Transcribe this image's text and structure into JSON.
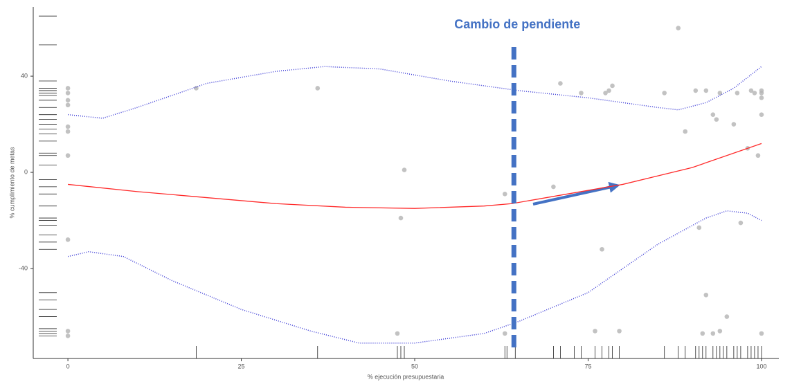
{
  "chart_data": {
    "type": "scatter",
    "x_label": "% ejecución presupuestaria",
    "y_label": "% cumplimiento de metas",
    "xlim": [
      -5,
      102.5
    ],
    "ylim": [
      -77.4,
      68.8
    ],
    "xticks": [
      0,
      25,
      50,
      75,
      100
    ],
    "yticks": [
      -40,
      0,
      40
    ],
    "annotation": {
      "text": "Cambio de pendiente",
      "x": 64.3
    },
    "points": {
      "color": "#b3b3b3",
      "x": [
        0,
        0,
        0,
        0,
        0,
        0,
        0,
        0,
        0,
        0,
        18.5,
        36,
        48,
        48.5,
        47.5,
        63,
        63,
        70,
        71,
        74,
        77,
        77.5,
        78,
        78.5,
        76,
        79.5,
        86,
        88,
        89,
        90.5,
        91,
        91.5,
        92,
        92,
        93,
        93,
        93.5,
        94,
        94,
        95,
        96,
        96.5,
        97,
        98,
        98.5,
        99,
        99.5,
        100,
        100,
        100,
        100,
        100
      ],
      "y": [
        33,
        35,
        30,
        28,
        19,
        17,
        7,
        -28,
        -66,
        -68,
        35,
        35,
        -19,
        1,
        -67,
        -9,
        -67,
        -6,
        37,
        33,
        -32,
        33,
        34,
        36,
        -66,
        -66,
        33,
        60,
        17,
        34,
        -23,
        -67,
        34,
        -51,
        -67,
        24,
        22,
        33,
        -66,
        -60,
        20,
        33,
        -21,
        10,
        34,
        33,
        7,
        34,
        33,
        24,
        31,
        -67
      ]
    },
    "fit": {
      "color": "#ff2a2a",
      "x": [
        0,
        10,
        20,
        30,
        40,
        50,
        60,
        64,
        70,
        80,
        90,
        100
      ],
      "y": [
        -5,
        -8,
        -10.5,
        -13,
        -14.5,
        -15,
        -14,
        -13,
        -10,
        -5,
        2,
        12
      ]
    },
    "upper": {
      "color": "#3a3ad6",
      "x": [
        0,
        5,
        10,
        20,
        30,
        37,
        45,
        55,
        65,
        75,
        85,
        88,
        92,
        96,
        100
      ],
      "y": [
        24,
        22.5,
        27,
        37,
        42,
        44,
        43,
        38,
        34,
        31,
        27,
        26,
        29,
        35,
        44
      ]
    },
    "lower": {
      "color": "#3a3ad6",
      "x": [
        0,
        3,
        8,
        15,
        25,
        35,
        42,
        50,
        60,
        65,
        75,
        85,
        92,
        95,
        98,
        100
      ],
      "y": [
        -35,
        -33,
        -35,
        -45,
        -57,
        -66,
        -71,
        -71,
        -67,
        -62,
        -50,
        -30,
        -19,
        -16,
        -17,
        -20
      ]
    },
    "rug_y": [
      65,
      53,
      38,
      35,
      34,
      33,
      33,
      32,
      30,
      27,
      24,
      22,
      20,
      18,
      16,
      13,
      8,
      7,
      3,
      -3,
      -6,
      -9,
      -14,
      -19,
      -20,
      -22,
      -26,
      -29,
      -32,
      -50,
      -53,
      -57,
      -60,
      -65,
      -66,
      -67,
      -68
    ],
    "rug_x": [
      18.5,
      36,
      47.5,
      48,
      48.5,
      63,
      63.3,
      64.5,
      70,
      71,
      73,
      74,
      76,
      77,
      78,
      78.5,
      79.5,
      86,
      88,
      89,
      90.5,
      91,
      91.5,
      92,
      93,
      93.5,
      94,
      94.5,
      95,
      96,
      96.5,
      97,
      98,
      98.5,
      99,
      99.5,
      100
    ]
  }
}
